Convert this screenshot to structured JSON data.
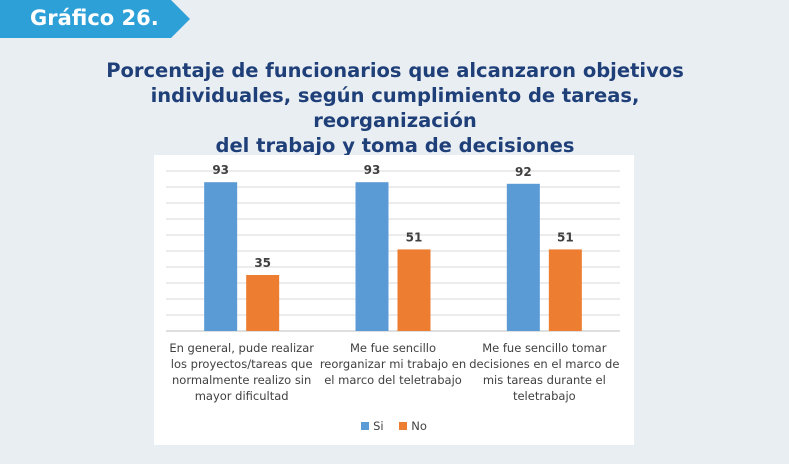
{
  "badge": {
    "label": "Gráfico 26.",
    "color": "#2ea0d8"
  },
  "chart_data": {
    "type": "bar",
    "title": [
      "Porcentaje de funcionarios que alcanzaron objetivos",
      "individuales, según cumplimiento de tareas, reorganización",
      "del trabajo y toma de decisiones"
    ],
    "categories": [
      [
        "En general, pude realizar",
        "los proyectos/tareas que",
        "normalmente realizo sin",
        "mayor dificultad"
      ],
      [
        "Me fue sencillo",
        "reorganizar mi trabajo en",
        "el marco del teletrabajo"
      ],
      [
        "Me fue sencillo tomar",
        "decisiones en el marco de",
        "mis tareas durante el",
        "teletrabajo"
      ]
    ],
    "series": [
      {
        "name": "Si",
        "values": [
          93,
          93,
          92
        ],
        "color": "#5b9bd5"
      },
      {
        "name": "No",
        "values": [
          35,
          51,
          51
        ],
        "color": "#ed7d31"
      }
    ],
    "ylim": [
      0,
      100
    ],
    "grid": true,
    "legend": "bottom-center",
    "xlabel": "",
    "ylabel": ""
  }
}
